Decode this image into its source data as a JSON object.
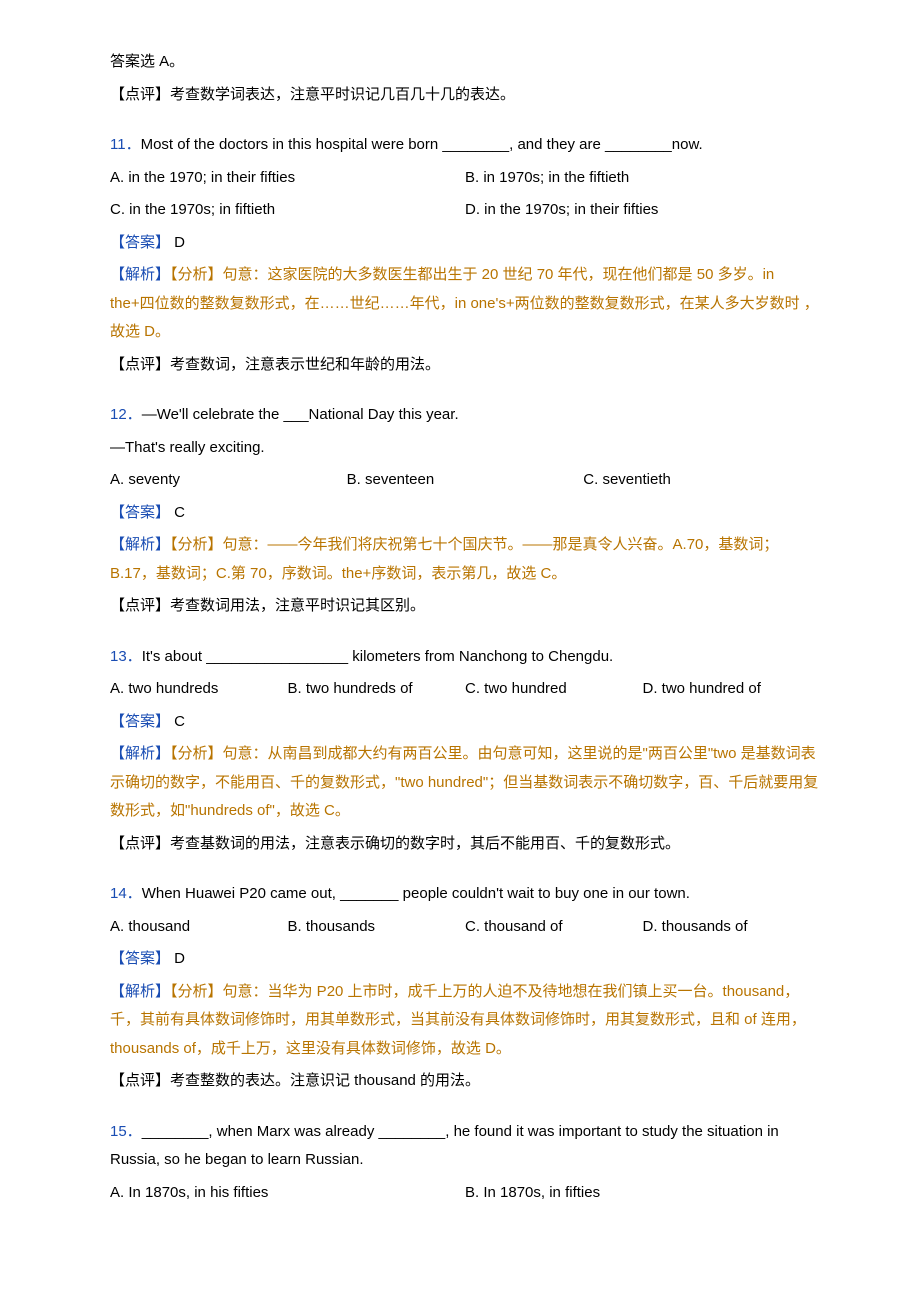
{
  "colors": {
    "text": "#000000",
    "accent": "#1a4db3",
    "explain": "#b87400",
    "background": "#ffffff"
  },
  "typography": {
    "font_family": "Microsoft YaHei, SimSun, Arial, sans-serif",
    "font_size_pt": 11,
    "line_height": 1.9
  },
  "top_lines": {
    "prev_answer": "答案选 A。",
    "prev_comment": "【点评】考查数学词表达，注意平时识记几百几十几的表达。"
  },
  "q11": {
    "num": "11．",
    "stem": "Most of the doctors in this hospital were born ________, and they are ________now.",
    "options": {
      "A": "A. in the 1970; in their fifties",
      "B": "B. in 1970s; in the fiftieth",
      "C": "C. in the 1970s; in fiftieth",
      "D": "D. in the 1970s; in their fifties"
    },
    "answer_label": "【答案】",
    "answer": " D",
    "explain_label": "【解析】",
    "explain_text": "【分析】句意：这家医院的大多数医生都出生于 20 世纪 70 年代，现在他们都是 50 多岁。in the+四位数的整数复数形式，在……世纪……年代，in one's+两位数的整数复数形式，在某人多大岁数时 ， 故选 D。",
    "comment": "【点评】考查数词，注意表示世纪和年龄的用法。"
  },
  "q12": {
    "num": "12．",
    "stem1": "—We'll celebrate the ___National Day this year.",
    "stem2": "—That's really exciting.",
    "options": {
      "A": "A. seventy",
      "B": "B. seventeen",
      "C": "C. seventieth"
    },
    "answer_label": "【答案】",
    "answer": " C",
    "explain_label": "【解析】",
    "explain_text": "【分析】句意：——今年我们将庆祝第七十个国庆节。——那是真令人兴奋。A.70，基数词；B.17，基数词；C.第 70，序数词。the+序数词，表示第几，故选 C。",
    "comment": "【点评】考查数词用法，注意平时识记其区别。"
  },
  "q13": {
    "num": "13．",
    "stem": "It's about _________________ kilometers from Nanchong to Chengdu.",
    "options": {
      "A": "A. two hundreds",
      "B": "B. two hundreds of",
      "C": "C. two hundred",
      "D": "D. two hundred of"
    },
    "answer_label": "【答案】",
    "answer": " C",
    "explain_label": "【解析】",
    "explain_text": "【分析】句意：从南昌到成都大约有两百公里。由句意可知，这里说的是\"两百公里\"two 是基数词表示确切的数字，不能用百、千的复数形式，\"two hundred\"；但当基数词表示不确切数字，百、千后就要用复数形式，如\"hundreds of\"，故选 C。",
    "comment": "【点评】考查基数词的用法，注意表示确切的数字时，其后不能用百、千的复数形式。"
  },
  "q14": {
    "num": "14．",
    "stem": "When Huawei P20 came out, _______ people couldn't wait to buy one in our town.",
    "options": {
      "A": "A. thousand",
      "B": "B. thousands",
      "C": "C. thousand of",
      "D": "D. thousands of"
    },
    "answer_label": "【答案】",
    "answer": " D",
    "explain_label": "【解析】",
    "explain_text": "【分析】句意：当华为 P20 上市时，成千上万的人迫不及待地想在我们镇上买一台。thousand，千，其前有具体数词修饰时，用其单数形式，当其前没有具体数词修饰时，用其复数形式，且和 of 连用，thousands of，成千上万，这里没有具体数词修饰，故选 D。",
    "comment": "【点评】考查整数的表达。注意识记 thousand 的用法。"
  },
  "q15": {
    "num": "15．",
    "stem": "________, when Marx was already ________, he found it was important to study the situation in Russia, so he began to learn Russian.",
    "options": {
      "A": "A. In 1870s, in his fifties",
      "B": "B. In 1870s, in fifties"
    }
  }
}
